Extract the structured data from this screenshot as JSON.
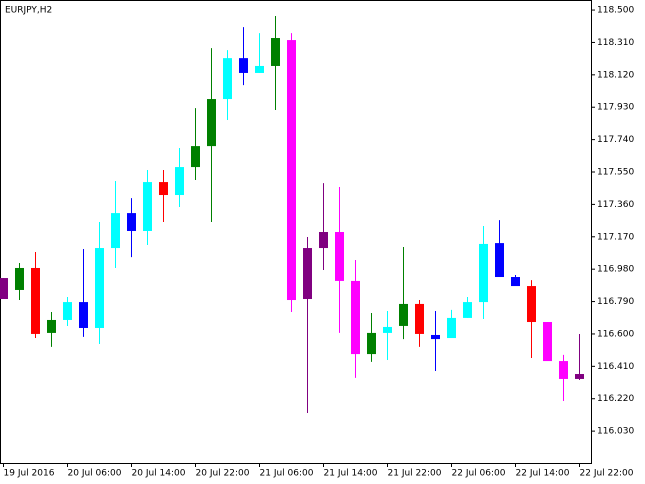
{
  "chart_data": {
    "type": "candlestick",
    "title": "EURJPY,H2",
    "categories": [
      "19 Jul 2016",
      null,
      null,
      null,
      "20 Jul 06:00",
      null,
      null,
      null,
      "20 Jul 14:00",
      null,
      null,
      null,
      "20 Jul 22:00",
      null,
      null,
      null,
      "21 Jul 06:00",
      null,
      null,
      null,
      "21 Jul 14:00",
      null,
      null,
      null,
      "21 Jul 22:00",
      null,
      null,
      null,
      "22 Jul 06:00",
      null,
      null,
      null,
      "22 Jul 14:00",
      null,
      null,
      null,
      "22 Jul 22:00"
    ],
    "open": [
      116.928,
      116.858,
      116.987,
      116.606,
      116.682,
      116.787,
      116.635,
      117.104,
      117.309,
      117.204,
      117.491,
      117.415,
      117.579,
      117.702,
      117.978,
      118.218,
      118.131,
      118.172,
      118.324,
      116.805,
      117.104,
      117.198,
      116.911,
      116.482,
      116.606,
      116.647,
      116.776,
      116.594,
      116.576,
      116.694,
      116.787,
      117.133,
      116.934,
      116.881,
      116.67,
      116.441,
      116.365
    ],
    "high": [
      116.928,
      117.016,
      117.081,
      116.729,
      116.817,
      117.098,
      117.257,
      117.497,
      117.397,
      117.562,
      117.562,
      117.691,
      117.925,
      118.277,
      118.265,
      118.4,
      118.365,
      118.465,
      118.365,
      117.169,
      117.485,
      117.462,
      117.034,
      116.723,
      116.735,
      117.11,
      116.799,
      116.735,
      116.741,
      116.817,
      117.233,
      117.268,
      116.946,
      116.916,
      116.67,
      116.477,
      116.6
    ],
    "low": [
      116.805,
      116.799,
      116.576,
      116.524,
      116.647,
      116.583,
      116.541,
      116.987,
      117.051,
      117.122,
      117.257,
      117.345,
      117.503,
      117.257,
      117.855,
      118.06,
      118.131,
      117.914,
      116.729,
      116.136,
      116.975,
      116.606,
      116.342,
      116.436,
      116.447,
      116.57,
      116.524,
      116.383,
      116.576,
      116.694,
      116.688,
      116.934,
      116.881,
      116.459,
      116.441,
      116.207,
      116.33
    ],
    "close": [
      116.805,
      116.987,
      116.6,
      116.682,
      116.787,
      116.635,
      117.104,
      117.309,
      117.204,
      117.491,
      117.415,
      117.579,
      117.702,
      117.978,
      118.218,
      118.131,
      118.172,
      118.336,
      116.799,
      117.104,
      117.198,
      116.911,
      116.482,
      116.606,
      116.641,
      116.776,
      116.6,
      116.57,
      116.694,
      116.787,
      117.128,
      116.934,
      116.881,
      116.67,
      116.441,
      116.336,
      116.336
    ],
    "colors": [
      "#800080",
      "#008000",
      "#ff0000",
      "#008000",
      "#00ffff",
      "#0000ff",
      "#00ffff",
      "#00ffff",
      "#0000ff",
      "#00ffff",
      "#ff0000",
      "#00ffff",
      "#008000",
      "#008000",
      "#00ffff",
      "#0000ff",
      "#00ffff",
      "#008000",
      "#ff00ff",
      "#800080",
      "#800080",
      "#ff00ff",
      "#ff00ff",
      "#008000",
      "#00ffff",
      "#008000",
      "#ff0000",
      "#0000ff",
      "#00ffff",
      "#00ffff",
      "#00ffff",
      "#0000ff",
      "#0000ff",
      "#ff0000",
      "#ff00ff",
      "#ff00ff",
      "#800080"
    ],
    "ylim": [
      115.843,
      118.559
    ],
    "yticks": [
      {
        "value": 118.5,
        "label": "118.500"
      },
      {
        "value": 118.31,
        "label": "118.310"
      },
      {
        "value": 118.12,
        "label": "118.120"
      },
      {
        "value": 117.93,
        "label": "117.930"
      },
      {
        "value": 117.74,
        "label": "117.740"
      },
      {
        "value": 117.55,
        "label": "117.550"
      },
      {
        "value": 117.36,
        "label": "117.360"
      },
      {
        "value": 117.17,
        "label": "117.170"
      },
      {
        "value": 116.98,
        "label": "116.980"
      },
      {
        "value": 116.79,
        "label": "116.790"
      },
      {
        "value": 116.6,
        "label": "116.600"
      },
      {
        "value": 116.41,
        "label": "116.410"
      },
      {
        "value": 116.22,
        "label": "116.220"
      },
      {
        "value": 116.03,
        "label": "116.030"
      }
    ]
  }
}
